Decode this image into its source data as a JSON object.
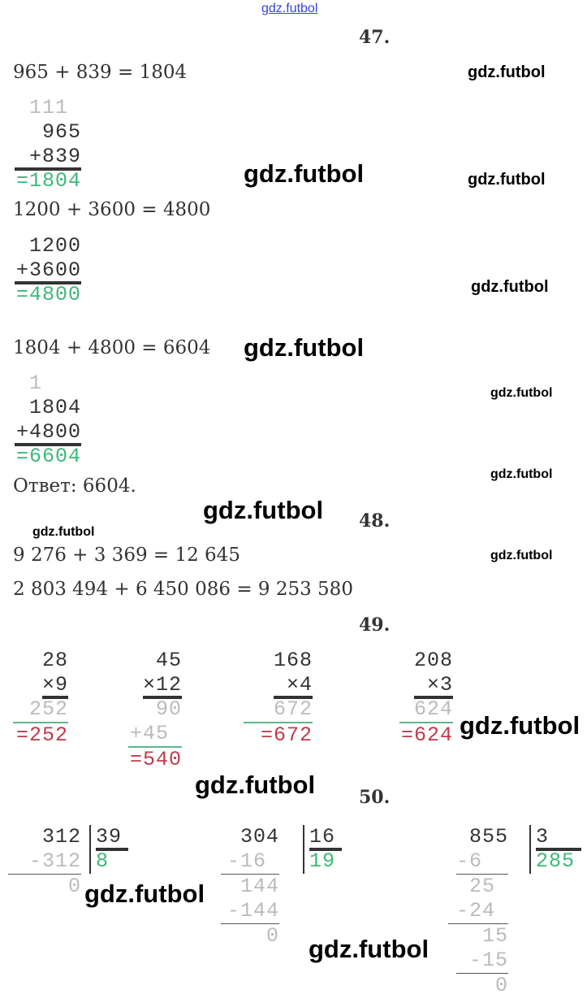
{
  "header_link": "gdz.futbol",
  "watermark": "gdz.futbol",
  "tasks": {
    "t47": {
      "number": "47.",
      "eq1": "965 + 839 = 1804",
      "c1": [
        "111 ",
        "965",
        "+839",
        "=1804"
      ],
      "eq2": "1200 + 3600 = 4800",
      "c2": [
        "1200",
        "+3600",
        "=4800"
      ],
      "eq3": "1804 + 4800 = 6604",
      "c3": [
        "1   ",
        "1804",
        "+4800",
        "=6604"
      ],
      "answer": "Ответ: 6604."
    },
    "t48": {
      "number": "48.",
      "eq1": "9 276 + 3 369 = 12 645",
      "eq2": "2 803 494 + 6 450 086 = 9 253 580"
    },
    "t49": {
      "number": "49.",
      "m1": [
        "28",
        "×9",
        "252",
        "=252"
      ],
      "m2": [
        "45",
        "×12",
        "90",
        "+45 ",
        "=540"
      ],
      "m3": [
        "168",
        "×4",
        "672",
        "=672"
      ],
      "m4": [
        "208",
        "×3",
        "624",
        "=624"
      ]
    },
    "t50": {
      "number": "50.",
      "d1": {
        "dividend": "312",
        "divisor": "39",
        "quotient": "8",
        "steps": [
          "-312",
          "0"
        ]
      },
      "d2": {
        "dividend": "304",
        "divisor": "16",
        "quotient": "19",
        "steps": [
          "-16 ",
          "144",
          "-144",
          "0"
        ]
      },
      "d3": {
        "dividend": "855",
        "divisor": "3",
        "quotient": "285",
        "steps": [
          "-6  ",
          "25 ",
          "-24 ",
          "15",
          "-15",
          "0"
        ]
      }
    }
  },
  "colors": {
    "result_green": "#3cb878",
    "result_red": "#c0394b",
    "carry_gray": "#bbbbbb"
  }
}
